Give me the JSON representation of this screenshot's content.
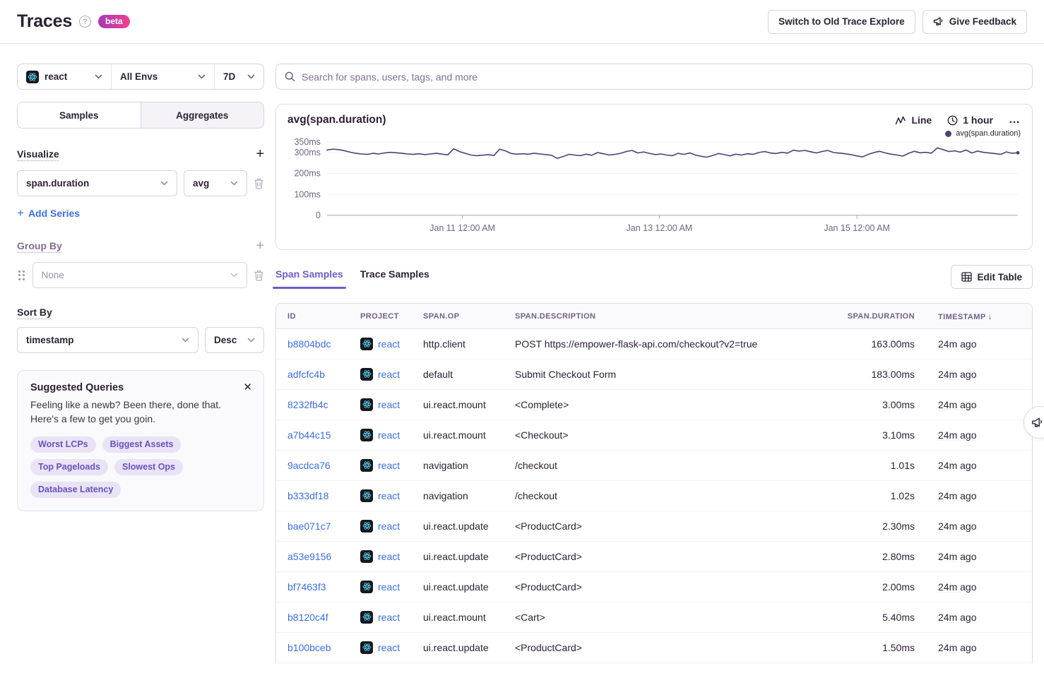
{
  "header": {
    "title": "Traces",
    "beta_label": "beta",
    "switch_button": "Switch to Old Trace Explore",
    "feedback_button": "Give Feedback"
  },
  "filters": {
    "project": "react",
    "environment": "All Envs",
    "date_range": "7D"
  },
  "search": {
    "placeholder": "Search for spans, users, tags, and more"
  },
  "sidebar": {
    "tabs": [
      {
        "label": "Samples",
        "active": true
      },
      {
        "label": "Aggregates",
        "active": false
      }
    ],
    "visualize": {
      "heading": "Visualize",
      "field": "span.duration",
      "aggregate": "avg",
      "add_series": "Add Series"
    },
    "group_by": {
      "heading": "Group By",
      "value": "None"
    },
    "sort_by": {
      "heading": "Sort By",
      "field": "timestamp",
      "direction": "Desc"
    },
    "suggested": {
      "title": "Suggested Queries",
      "line1": "Feeling like a newb? Been there, done that.",
      "line2": "Here's a few to get you goin.",
      "chips": [
        "Worst LCPs",
        "Biggest Assets",
        "Top Pageloads",
        "Slowest Ops",
        "Database Latency"
      ]
    }
  },
  "chart": {
    "title": "avg(span.duration)",
    "type_label": "Line",
    "interval_label": "1 hour",
    "more_label": "…",
    "legend": "avg(span.duration)"
  },
  "chart_data": {
    "type": "line",
    "title": "avg(span.duration)",
    "x_range_label": "7D",
    "ylim": [
      0,
      350
    ],
    "yticks": [
      {
        "value": 0,
        "label": "0"
      },
      {
        "value": 100,
        "label": "100ms"
      },
      {
        "value": 200,
        "label": "200ms"
      },
      {
        "value": 300,
        "label": "300ms"
      },
      {
        "value": 350,
        "label": "350ms"
      }
    ],
    "xticks": [
      {
        "pos": 0.196,
        "label": "Jan 11 12:00 AM"
      },
      {
        "pos": 0.481,
        "label": "Jan 13 12:00 AM"
      },
      {
        "pos": 0.767,
        "label": "Jan 15 12:00 AM"
      }
    ],
    "grid": true,
    "legend_position": "top-right",
    "series": [
      {
        "name": "avg(span.duration)",
        "color": "#444674",
        "unit": "ms",
        "values": [
          312,
          316,
          314,
          309,
          302,
          296,
          293,
          291,
          296,
          293,
          298,
          301,
          299,
          296,
          293,
          291,
          294,
          290,
          293,
          296,
          292,
          289,
          318,
          305,
          296,
          288,
          285,
          287,
          290,
          286,
          316,
          308,
          295,
          292,
          294,
          292,
          296,
          293,
          290,
          287,
          272,
          281,
          291,
          288,
          285,
          292,
          287,
          300,
          294,
          288,
          291,
          296,
          305,
          310,
          298,
          303,
          296,
          290,
          293,
          288,
          285,
          296,
          291,
          298,
          288,
          282,
          278,
          286,
          295,
          290,
          284,
          292,
          288,
          294,
          291,
          300,
          305,
          298,
          295,
          301,
          297,
          311,
          307,
          310,
          304,
          298,
          305,
          310,
          300,
          297,
          294,
          290,
          284,
          279,
          291,
          300,
          306,
          298,
          292,
          288,
          283,
          296,
          306,
          299,
          301,
          297,
          322,
          314,
          305,
          308,
          302,
          312,
          298,
          307,
          301,
          298,
          295,
          291,
          303,
          296,
          299
        ]
      }
    ]
  },
  "table": {
    "tabs": [
      {
        "label": "Span Samples",
        "active": true
      },
      {
        "label": "Trace Samples",
        "active": false
      }
    ],
    "edit_button": "Edit Table",
    "columns": [
      "ID",
      "PROJECT",
      "SPAN.OP",
      "SPAN.DESCRIPTION",
      "SPAN.DURATION",
      "TIMESTAMP"
    ],
    "sorted_column": "TIMESTAMP",
    "sort_direction": "desc",
    "rows": [
      {
        "id": "b8804bdc",
        "project": "react",
        "op": "http.client",
        "description": "POST https://empower-flask-api.com/checkout?v2=true",
        "duration": "163.00ms",
        "timestamp": "24m ago"
      },
      {
        "id": "adfcfc4b",
        "project": "react",
        "op": "default",
        "description": "Submit Checkout Form",
        "duration": "183.00ms",
        "timestamp": "24m ago"
      },
      {
        "id": "8232fb4c",
        "project": "react",
        "op": "ui.react.mount",
        "description": "<Complete>",
        "duration": "3.00ms",
        "timestamp": "24m ago"
      },
      {
        "id": "a7b44c15",
        "project": "react",
        "op": "ui.react.mount",
        "description": "<Checkout>",
        "duration": "3.10ms",
        "timestamp": "24m ago"
      },
      {
        "id": "9acdca76",
        "project": "react",
        "op": "navigation",
        "description": "/checkout",
        "duration": "1.01s",
        "timestamp": "24m ago"
      },
      {
        "id": "b333df18",
        "project": "react",
        "op": "navigation",
        "description": "/checkout",
        "duration": "1.02s",
        "timestamp": "24m ago"
      },
      {
        "id": "bae071c7",
        "project": "react",
        "op": "ui.react.update",
        "description": "<ProductCard>",
        "duration": "2.30ms",
        "timestamp": "24m ago"
      },
      {
        "id": "a53e9156",
        "project": "react",
        "op": "ui.react.update",
        "description": "<ProductCard>",
        "duration": "2.80ms",
        "timestamp": "24m ago"
      },
      {
        "id": "bf7463f3",
        "project": "react",
        "op": "ui.react.update",
        "description": "<ProductCard>",
        "duration": "2.00ms",
        "timestamp": "24m ago"
      },
      {
        "id": "b8120c4f",
        "project": "react",
        "op": "ui.react.mount",
        "description": "<Cart>",
        "duration": "5.40ms",
        "timestamp": "24m ago"
      },
      {
        "id": "b100bceb",
        "project": "react",
        "op": "ui.react.update",
        "description": "<ProductCard>",
        "duration": "1.50ms",
        "timestamp": "24m ago"
      }
    ]
  },
  "colors": {
    "accent_purple": "#6c5fc7",
    "link_blue": "#3b6fdd",
    "chart_line": "#444674",
    "beta_gradient_start": "#a838b8",
    "beta_gradient_end": "#f1408e",
    "react_cyan": "#58d0f5",
    "text_primary": "#2b2233",
    "text_secondary": "#80708f",
    "border": "#e0dce5"
  }
}
